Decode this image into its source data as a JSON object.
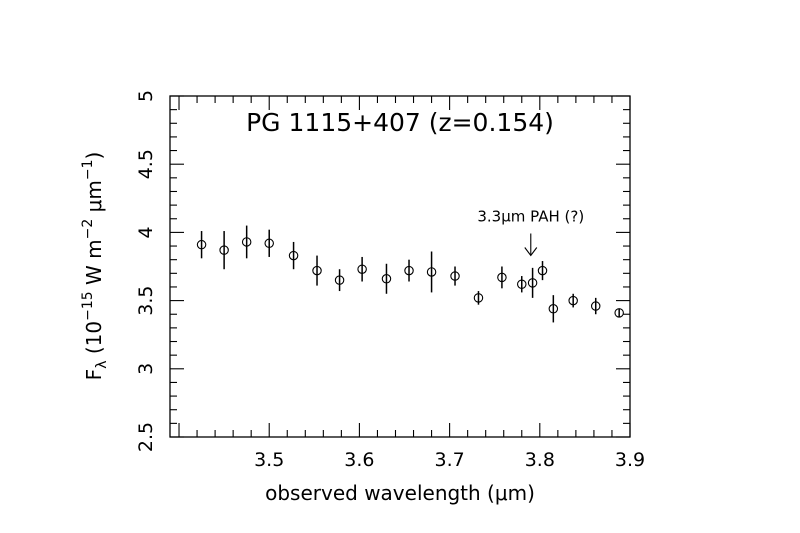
{
  "chart_data": {
    "type": "scatter",
    "title": "PG 1115+407 (z=0.154)",
    "xlabel": "observed wavelength (μm)",
    "ylabel": {
      "base": "F",
      "sub": "λ",
      "text1": " (10",
      "exp1": "−15",
      "text2": " W m",
      "exp2": "−2",
      "text3": " μm",
      "exp3": "−1",
      "text4": ")"
    },
    "xlim": [
      3.39,
      3.9
    ],
    "ylim": [
      2.5,
      5
    ],
    "xticks": [
      "3.5",
      "3.6",
      "3.7",
      "3.8",
      "3.9"
    ],
    "yticks": [
      "2.5",
      "3",
      "3.5",
      "4",
      "4.5",
      "5"
    ],
    "annotation": {
      "text": "3.3μm PAH (?)",
      "x": 3.79,
      "y": 4.08
    },
    "points": [
      {
        "x": 3.425,
        "y": 3.91,
        "err": 0.1
      },
      {
        "x": 3.45,
        "y": 3.87,
        "err": 0.14
      },
      {
        "x": 3.475,
        "y": 3.93,
        "err": 0.12
      },
      {
        "x": 3.5,
        "y": 3.92,
        "err": 0.1
      },
      {
        "x": 3.527,
        "y": 3.83,
        "err": 0.1
      },
      {
        "x": 3.553,
        "y": 3.72,
        "err": 0.11
      },
      {
        "x": 3.578,
        "y": 3.65,
        "err": 0.08
      },
      {
        "x": 3.603,
        "y": 3.73,
        "err": 0.09
      },
      {
        "x": 3.63,
        "y": 3.66,
        "err": 0.11
      },
      {
        "x": 3.655,
        "y": 3.72,
        "err": 0.08
      },
      {
        "x": 3.68,
        "y": 3.71,
        "err": 0.15
      },
      {
        "x": 3.706,
        "y": 3.68,
        "err": 0.07
      },
      {
        "x": 3.732,
        "y": 3.52,
        "err": 0.05
      },
      {
        "x": 3.758,
        "y": 3.67,
        "err": 0.08
      },
      {
        "x": 3.78,
        "y": 3.62,
        "err": 0.06
      },
      {
        "x": 3.792,
        "y": 3.63,
        "err": 0.11
      },
      {
        "x": 3.803,
        "y": 3.72,
        "err": 0.07
      },
      {
        "x": 3.815,
        "y": 3.44,
        "err": 0.1
      },
      {
        "x": 3.837,
        "y": 3.5,
        "err": 0.05
      },
      {
        "x": 3.862,
        "y": 3.46,
        "err": 0.06
      },
      {
        "x": 3.888,
        "y": 3.41,
        "err": 0.03
      }
    ]
  }
}
